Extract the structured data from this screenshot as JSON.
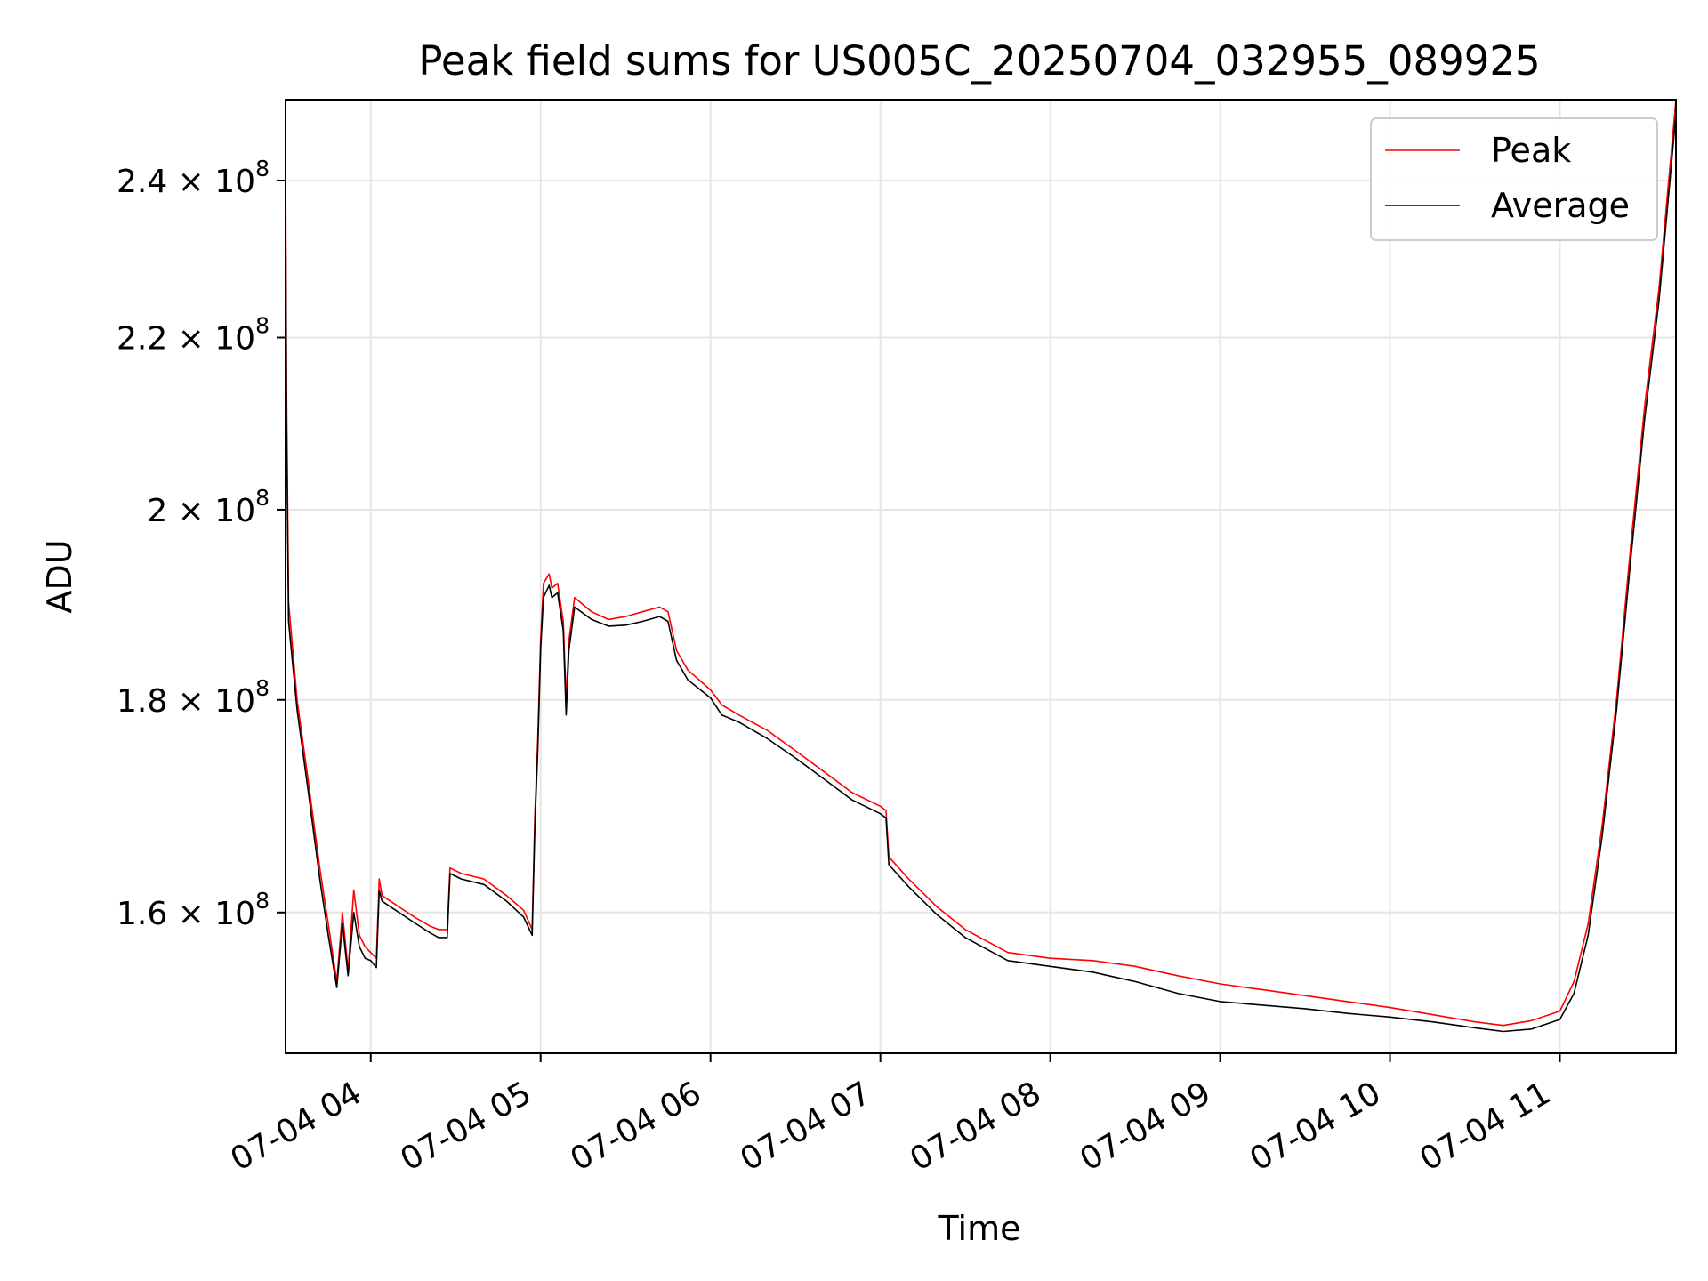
{
  "chart_data": {
    "type": "line",
    "title": "Peak field sums for US005C_20250704_032955_089925",
    "xlabel": "Time",
    "ylabel": "ADU",
    "y_scale": "log",
    "grid": true,
    "legend_position": "top-right",
    "x_domain": [
      "2025-07-04 03:29:55",
      "2025-07-04 11:41:00"
    ],
    "ylim": [
      148000000,
      251000000
    ],
    "x_ticks": [
      {
        "time": "2025-07-04 04:00",
        "label": "07-04 04"
      },
      {
        "time": "2025-07-04 05:00",
        "label": "07-04 05"
      },
      {
        "time": "2025-07-04 06:00",
        "label": "07-04 06"
      },
      {
        "time": "2025-07-04 07:00",
        "label": "07-04 07"
      },
      {
        "time": "2025-07-04 08:00",
        "label": "07-04 08"
      },
      {
        "time": "2025-07-04 09:00",
        "label": "07-04 09"
      },
      {
        "time": "2025-07-04 10:00",
        "label": "07-04 10"
      },
      {
        "time": "2025-07-04 11:00",
        "label": "07-04 11"
      }
    ],
    "y_ticks": [
      {
        "value": 160000000,
        "mantissa": "1.6",
        "exponent": "8"
      },
      {
        "value": 180000000,
        "mantissa": "1.8",
        "exponent": "8"
      },
      {
        "value": 200000000,
        "mantissa": "2",
        "exponent": "8"
      },
      {
        "value": 220000000,
        "mantissa": "2.2",
        "exponent": "8"
      },
      {
        "value": 240000000,
        "mantissa": "2.4",
        "exponent": "8"
      }
    ],
    "series": [
      {
        "name": "Peak",
        "color": "#ff0000",
        "points": [
          [
            "2025-07-04 03:29:55",
            243000000
          ],
          [
            "2025-07-04 03:30:15",
            214000000
          ],
          [
            "2025-07-04 03:31",
            190000000
          ],
          [
            "2025-07-04 03:34",
            180000000
          ],
          [
            "2025-07-04 03:38",
            172000000
          ],
          [
            "2025-07-04 03:42",
            164000000
          ],
          [
            "2025-07-04 03:45",
            159000000
          ],
          [
            "2025-07-04 03:48",
            154000000
          ],
          [
            "2025-07-04 03:50",
            160000000
          ],
          [
            "2025-07-04 03:52",
            155000000
          ],
          [
            "2025-07-04 03:54",
            162000000
          ],
          [
            "2025-07-04 03:56",
            158000000
          ],
          [
            "2025-07-04 03:58",
            157000000
          ],
          [
            "2025-07-04 04:00",
            156500000
          ],
          [
            "2025-07-04 04:02",
            156000000
          ],
          [
            "2025-07-04 04:03",
            163000000
          ],
          [
            "2025-07-04 04:04",
            161500000
          ],
          [
            "2025-07-04 04:10",
            160500000
          ],
          [
            "2025-07-04 04:16",
            159500000
          ],
          [
            "2025-07-04 04:21",
            158800000
          ],
          [
            "2025-07-04 04:24",
            158500000
          ],
          [
            "2025-07-04 04:27",
            158500000
          ],
          [
            "2025-07-04 04:28",
            164000000
          ],
          [
            "2025-07-04 04:32",
            163500000
          ],
          [
            "2025-07-04 04:40",
            163000000
          ],
          [
            "2025-07-04 04:48",
            161500000
          ],
          [
            "2025-07-04 04:54",
            160200000
          ],
          [
            "2025-07-04 04:57",
            158500000
          ],
          [
            "2025-07-04 04:58",
            169000000
          ],
          [
            "2025-07-04 04:59",
            176000000
          ],
          [
            "2025-07-04 05:00",
            186000000
          ],
          [
            "2025-07-04 05:01",
            192000000
          ],
          [
            "2025-07-04 05:03",
            193000000
          ],
          [
            "2025-07-04 05:04",
            191500000
          ],
          [
            "2025-07-04 05:06",
            192000000
          ],
          [
            "2025-07-04 05:08",
            188000000
          ],
          [
            "2025-07-04 05:09",
            180000000
          ],
          [
            "2025-07-04 05:10",
            186000000
          ],
          [
            "2025-07-04 05:12",
            190500000
          ],
          [
            "2025-07-04 05:18",
            189000000
          ],
          [
            "2025-07-04 05:24",
            188200000
          ],
          [
            "2025-07-04 05:30",
            188500000
          ],
          [
            "2025-07-04 05:36",
            189000000
          ],
          [
            "2025-07-04 05:42",
            189500000
          ],
          [
            "2025-07-04 05:45",
            189000000
          ],
          [
            "2025-07-04 05:48",
            185000000
          ],
          [
            "2025-07-04 05:52",
            183000000
          ],
          [
            "2025-07-04 06:00",
            181000000
          ],
          [
            "2025-07-04 06:04",
            179500000
          ],
          [
            "2025-07-04 06:10",
            178500000
          ],
          [
            "2025-07-04 06:20",
            177000000
          ],
          [
            "2025-07-04 06:30",
            175000000
          ],
          [
            "2025-07-04 06:40",
            173000000
          ],
          [
            "2025-07-04 06:50",
            171000000
          ],
          [
            "2025-07-04 07:00",
            169700000
          ],
          [
            "2025-07-04 07:02",
            169300000
          ],
          [
            "2025-07-04 07:03",
            165000000
          ],
          [
            "2025-07-04 07:10",
            163000000
          ],
          [
            "2025-07-04 07:20",
            160500000
          ],
          [
            "2025-07-04 07:30",
            158500000
          ],
          [
            "2025-07-04 07:45",
            156500000
          ],
          [
            "2025-07-04 08:00",
            156000000
          ],
          [
            "2025-07-04 08:15",
            155800000
          ],
          [
            "2025-07-04 08:30",
            155300000
          ],
          [
            "2025-07-04 08:45",
            154500000
          ],
          [
            "2025-07-04 09:00",
            153800000
          ],
          [
            "2025-07-04 09:15",
            153300000
          ],
          [
            "2025-07-04 09:30",
            152800000
          ],
          [
            "2025-07-04 09:45",
            152300000
          ],
          [
            "2025-07-04 10:00",
            151800000
          ],
          [
            "2025-07-04 10:15",
            151200000
          ],
          [
            "2025-07-04 10:30",
            150600000
          ],
          [
            "2025-07-04 10:40",
            150300000
          ],
          [
            "2025-07-04 10:50",
            150700000
          ],
          [
            "2025-07-04 11:00",
            151500000
          ],
          [
            "2025-07-04 11:05",
            154000000
          ],
          [
            "2025-07-04 11:10",
            159000000
          ],
          [
            "2025-07-04 11:15",
            168000000
          ],
          [
            "2025-07-04 11:20",
            180000000
          ],
          [
            "2025-07-04 11:25",
            196000000
          ],
          [
            "2025-07-04 11:30",
            212000000
          ],
          [
            "2025-07-04 11:35",
            226000000
          ],
          [
            "2025-07-04 11:41",
            251000000
          ]
        ]
      },
      {
        "name": "Average",
        "color": "#000000",
        "points": [
          [
            "2025-07-04 03:29:55",
            238000000
          ],
          [
            "2025-07-04 03:30:15",
            210000000
          ],
          [
            "2025-07-04 03:31",
            188000000
          ],
          [
            "2025-07-04 03:34",
            179000000
          ],
          [
            "2025-07-04 03:38",
            171000000
          ],
          [
            "2025-07-04 03:42",
            163000000
          ],
          [
            "2025-07-04 03:45",
            158000000
          ],
          [
            "2025-07-04 03:48",
            153500000
          ],
          [
            "2025-07-04 03:50",
            159000000
          ],
          [
            "2025-07-04 03:52",
            154500000
          ],
          [
            "2025-07-04 03:54",
            160000000
          ],
          [
            "2025-07-04 03:56",
            157000000
          ],
          [
            "2025-07-04 03:58",
            156000000
          ],
          [
            "2025-07-04 04:00",
            155800000
          ],
          [
            "2025-07-04 04:02",
            155200000
          ],
          [
            "2025-07-04 04:03",
            162000000
          ],
          [
            "2025-07-04 04:04",
            161000000
          ],
          [
            "2025-07-04 04:10",
            160000000
          ],
          [
            "2025-07-04 04:16",
            159000000
          ],
          [
            "2025-07-04 04:21",
            158200000
          ],
          [
            "2025-07-04 04:24",
            157800000
          ],
          [
            "2025-07-04 04:27",
            157800000
          ],
          [
            "2025-07-04 04:28",
            163500000
          ],
          [
            "2025-07-04 04:32",
            163000000
          ],
          [
            "2025-07-04 04:40",
            162500000
          ],
          [
            "2025-07-04 04:48",
            161000000
          ],
          [
            "2025-07-04 04:54",
            159600000
          ],
          [
            "2025-07-04 04:57",
            158000000
          ],
          [
            "2025-07-04 04:58",
            168000000
          ],
          [
            "2025-07-04 04:59",
            175000000
          ],
          [
            "2025-07-04 05:00",
            185000000
          ],
          [
            "2025-07-04 05:01",
            190500000
          ],
          [
            "2025-07-04 05:03",
            191800000
          ],
          [
            "2025-07-04 05:04",
            190500000
          ],
          [
            "2025-07-04 05:06",
            191000000
          ],
          [
            "2025-07-04 05:08",
            187000000
          ],
          [
            "2025-07-04 05:09",
            178500000
          ],
          [
            "2025-07-04 05:10",
            185000000
          ],
          [
            "2025-07-04 05:12",
            189500000
          ],
          [
            "2025-07-04 05:18",
            188200000
          ],
          [
            "2025-07-04 05:24",
            187500000
          ],
          [
            "2025-07-04 05:30",
            187600000
          ],
          [
            "2025-07-04 05:36",
            188000000
          ],
          [
            "2025-07-04 05:42",
            188500000
          ],
          [
            "2025-07-04 05:45",
            188000000
          ],
          [
            "2025-07-04 05:48",
            184000000
          ],
          [
            "2025-07-04 05:52",
            182000000
          ],
          [
            "2025-07-04 06:00",
            180200000
          ],
          [
            "2025-07-04 06:04",
            178500000
          ],
          [
            "2025-07-04 06:10",
            177800000
          ],
          [
            "2025-07-04 06:20",
            176200000
          ],
          [
            "2025-07-04 06:30",
            174300000
          ],
          [
            "2025-07-04 06:40",
            172300000
          ],
          [
            "2025-07-04 06:50",
            170300000
          ],
          [
            "2025-07-04 07:00",
            169000000
          ],
          [
            "2025-07-04 07:02",
            168600000
          ],
          [
            "2025-07-04 07:03",
            164300000
          ],
          [
            "2025-07-04 07:10",
            162300000
          ],
          [
            "2025-07-04 07:20",
            159800000
          ],
          [
            "2025-07-04 07:30",
            157800000
          ],
          [
            "2025-07-04 07:45",
            155800000
          ],
          [
            "2025-07-04 08:00",
            155300000
          ],
          [
            "2025-07-04 08:15",
            154800000
          ],
          [
            "2025-07-04 08:30",
            154000000
          ],
          [
            "2025-07-04 08:45",
            153000000
          ],
          [
            "2025-07-04 09:00",
            152300000
          ],
          [
            "2025-07-04 09:15",
            152000000
          ],
          [
            "2025-07-04 09:30",
            151700000
          ],
          [
            "2025-07-04 09:45",
            151300000
          ],
          [
            "2025-07-04 10:00",
            151000000
          ],
          [
            "2025-07-04 10:15",
            150600000
          ],
          [
            "2025-07-04 10:30",
            150100000
          ],
          [
            "2025-07-04 10:40",
            149800000
          ],
          [
            "2025-07-04 10:50",
            150000000
          ],
          [
            "2025-07-04 11:00",
            150800000
          ],
          [
            "2025-07-04 11:05",
            153000000
          ],
          [
            "2025-07-04 11:10",
            158000000
          ],
          [
            "2025-07-04 11:15",
            167000000
          ],
          [
            "2025-07-04 11:20",
            179000000
          ],
          [
            "2025-07-04 11:25",
            194500000
          ],
          [
            "2025-07-04 11:30",
            210500000
          ],
          [
            "2025-07-04 11:35",
            224500000
          ],
          [
            "2025-07-04 11:41",
            249000000
          ]
        ]
      }
    ]
  }
}
